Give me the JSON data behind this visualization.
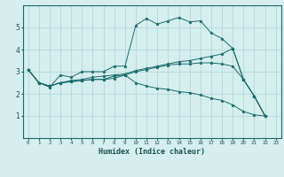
{
  "xlabel": "Humidex (Indice chaleur)",
  "bg_color": "#d5eeee",
  "grid_color": "#aed4d4",
  "line_color": "#1a6b6b",
  "xlim": [
    -0.5,
    23.5
  ],
  "ylim": [
    0,
    6
  ],
  "xticks": [
    0,
    1,
    2,
    3,
    4,
    5,
    6,
    7,
    8,
    9,
    10,
    11,
    12,
    13,
    14,
    15,
    16,
    17,
    18,
    19,
    20,
    21,
    22,
    23
  ],
  "yticks": [
    1,
    2,
    3,
    4,
    5
  ],
  "line1_x": [
    0,
    1,
    2,
    3,
    4,
    5,
    6,
    7,
    8,
    9,
    10,
    11,
    12,
    13,
    14,
    15,
    16,
    17,
    18,
    19,
    20,
    21,
    22
  ],
  "line1_y": [
    3.1,
    2.5,
    2.3,
    2.85,
    2.75,
    3.0,
    3.0,
    3.0,
    3.25,
    3.25,
    5.1,
    5.4,
    5.15,
    5.3,
    5.45,
    5.25,
    5.3,
    4.75,
    4.5,
    4.05,
    2.65,
    1.9,
    1.0
  ],
  "line2_x": [
    0,
    1,
    2,
    3,
    4,
    5,
    6,
    7,
    8,
    9,
    10,
    11,
    12,
    13,
    14,
    15,
    16,
    17,
    18,
    19,
    20,
    21,
    22
  ],
  "line2_y": [
    3.1,
    2.5,
    2.35,
    2.5,
    2.6,
    2.65,
    2.75,
    2.8,
    2.85,
    2.9,
    3.05,
    3.15,
    3.25,
    3.35,
    3.45,
    3.5,
    3.6,
    3.7,
    3.8,
    4.05,
    2.65,
    1.9,
    1.0
  ],
  "line3_x": [
    0,
    1,
    2,
    3,
    4,
    5,
    6,
    7,
    8,
    9,
    10,
    11,
    12,
    13,
    14,
    15,
    16,
    17,
    18,
    19,
    20,
    21,
    22
  ],
  "line3_y": [
    3.1,
    2.5,
    2.35,
    2.5,
    2.55,
    2.6,
    2.65,
    2.65,
    2.7,
    2.85,
    2.5,
    2.35,
    2.25,
    2.2,
    2.1,
    2.05,
    1.95,
    1.8,
    1.7,
    1.5,
    1.2,
    1.05,
    1.0
  ],
  "line4_x": [
    0,
    1,
    2,
    3,
    4,
    5,
    6,
    7,
    8,
    9,
    10,
    11,
    12,
    13,
    14,
    15,
    16,
    17,
    18,
    19,
    20,
    21,
    22
  ],
  "line4_y": [
    3.1,
    2.5,
    2.35,
    2.5,
    2.55,
    2.6,
    2.65,
    2.65,
    2.8,
    2.85,
    3.0,
    3.1,
    3.2,
    3.3,
    3.35,
    3.35,
    3.4,
    3.4,
    3.35,
    3.25,
    2.65,
    1.9,
    1.0
  ]
}
